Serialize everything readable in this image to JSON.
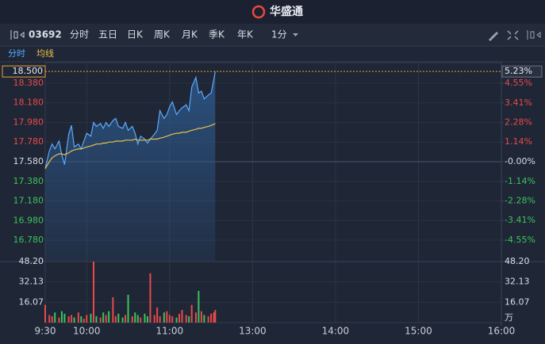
{
  "header": {
    "logo": "华盛通"
  },
  "toolbar": {
    "code": "03692",
    "tabs": [
      "分时",
      "五日",
      "日K",
      "周K",
      "月K",
      "季K",
      "年K"
    ],
    "active": 0,
    "interval": "1分"
  },
  "chart_data": [
    {
      "type": "line",
      "x": [
        0,
        3,
        5,
        7,
        10,
        12,
        14,
        17,
        19,
        21,
        24,
        26,
        28,
        30,
        33,
        35,
        37,
        40,
        42,
        44,
        46,
        49,
        51,
        53,
        56,
        58,
        60,
        63,
        65,
        67,
        69,
        72,
        74,
        76,
        79,
        81,
        83,
        86,
        88,
        90,
        92,
        95,
        97,
        99,
        102,
        104,
        106,
        109,
        111,
        113,
        115,
        118,
        120,
        122,
        123
      ],
      "series": [
        {
          "name": "分时",
          "color": "#5aa9ff",
          "values": [
            17.51,
            17.69,
            17.76,
            17.71,
            17.79,
            17.65,
            17.55,
            17.86,
            17.95,
            17.73,
            17.76,
            17.71,
            17.79,
            17.87,
            17.84,
            17.98,
            17.94,
            17.97,
            17.92,
            17.98,
            17.94,
            18.0,
            18.02,
            17.94,
            17.92,
            17.98,
            17.9,
            17.94,
            17.87,
            17.76,
            17.84,
            17.81,
            17.77,
            17.81,
            17.86,
            17.9,
            18.1,
            18.02,
            18.06,
            18.14,
            18.19,
            18.06,
            18.1,
            18.13,
            18.16,
            18.1,
            18.34,
            18.44,
            18.28,
            18.3,
            18.22,
            18.26,
            18.28,
            18.42,
            18.5
          ]
        },
        {
          "name": "均线",
          "color": "#e8c24a",
          "values": [
            17.51,
            17.58,
            17.62,
            17.64,
            17.66,
            17.66,
            17.65,
            17.67,
            17.69,
            17.7,
            17.71,
            17.71,
            17.72,
            17.73,
            17.74,
            17.75,
            17.76,
            17.76,
            17.77,
            17.77,
            17.78,
            17.78,
            17.79,
            17.79,
            17.79,
            17.8,
            17.8,
            17.8,
            17.81,
            17.8,
            17.8,
            17.8,
            17.8,
            17.81,
            17.81,
            17.81,
            17.82,
            17.83,
            17.84,
            17.85,
            17.86,
            17.87,
            17.87,
            17.88,
            17.88,
            17.89,
            17.9,
            17.91,
            17.92,
            17.92,
            17.93,
            17.94,
            17.95,
            17.96,
            17.97
          ]
        }
      ],
      "xlim": [
        0,
        330
      ],
      "xticks": [
        {
          "value": 0,
          "label": "9:30"
        },
        {
          "value": 30,
          "label": "10:00"
        },
        {
          "value": 90,
          "label": "11:00"
        },
        {
          "value": 150,
          "label": "13:00"
        },
        {
          "value": 210,
          "label": "14:00"
        },
        {
          "value": 270,
          "label": "15:00"
        },
        {
          "value": 330,
          "label": "16:00"
        }
      ],
      "ylim": [
        16.57,
        18.59
      ],
      "yticks": [
        {
          "value": 18.38,
          "label": "18.380"
        },
        {
          "value": 18.18,
          "label": "18.180"
        },
        {
          "value": 17.98,
          "label": "17.980"
        },
        {
          "value": 17.78,
          "label": "17.780"
        },
        {
          "value": 17.58,
          "label": "17.580"
        },
        {
          "value": 17.38,
          "label": "17.380"
        },
        {
          "value": 17.18,
          "label": "17.180"
        },
        {
          "value": 16.98,
          "label": "16.980"
        },
        {
          "value": 16.78,
          "label": "16.780"
        }
      ],
      "y2lim": [
        -5.745,
        5.745
      ],
      "y2ticks": [
        {
          "value": 4.55,
          "label": "4.55%"
        },
        {
          "value": 3.41,
          "label": "3.41%"
        },
        {
          "value": 2.28,
          "label": "2.28%"
        },
        {
          "value": 1.14,
          "label": "1.14%"
        },
        {
          "value": 0,
          "label": "-0.00%"
        },
        {
          "value": -1.14,
          "label": "-1.14%"
        },
        {
          "value": -2.28,
          "label": "-2.28%"
        },
        {
          "value": -3.41,
          "label": "-3.41%"
        },
        {
          "value": -4.55,
          "label": "-4.55%"
        }
      ],
      "current_price": {
        "value": 18.5,
        "label": "18.500"
      },
      "current_change": {
        "value": 5.23,
        "label": "5.23%"
      },
      "up_color": "#e84a4a",
      "down_color": "#3cc35a",
      "grid": true
    },
    {
      "type": "bar",
      "x": [
        0,
        3,
        5,
        7,
        10,
        12,
        14,
        17,
        19,
        21,
        24,
        26,
        28,
        30,
        33,
        35,
        37,
        40,
        42,
        44,
        46,
        49,
        51,
        53,
        56,
        58,
        60,
        63,
        65,
        67,
        69,
        72,
        74,
        76,
        79,
        81,
        83,
        86,
        88,
        90,
        92,
        95,
        97,
        99,
        102,
        104,
        106,
        109,
        111,
        113,
        115,
        118,
        120,
        122,
        123
      ],
      "values": [
        14,
        6,
        5,
        8,
        4,
        9,
        7,
        5,
        6,
        4,
        8,
        5,
        3,
        6,
        7,
        48.2,
        5,
        4,
        8,
        6,
        9,
        20,
        5,
        7,
        4,
        6,
        22,
        5,
        8,
        6,
        4,
        7,
        5,
        39,
        6,
        12,
        5,
        8,
        9,
        6,
        5,
        4,
        7,
        10,
        6,
        5,
        14,
        8,
        25,
        9,
        6,
        5,
        7,
        8,
        10
      ],
      "xlim": [
        0,
        330
      ],
      "ylim": [
        0,
        48.2
      ],
      "yticks": [
        {
          "value": 48.2,
          "label": "48.20"
        },
        {
          "value": 32.13,
          "label": "32.13"
        },
        {
          "value": 16.07,
          "label": "16.07"
        }
      ],
      "unit": "万"
    }
  ]
}
